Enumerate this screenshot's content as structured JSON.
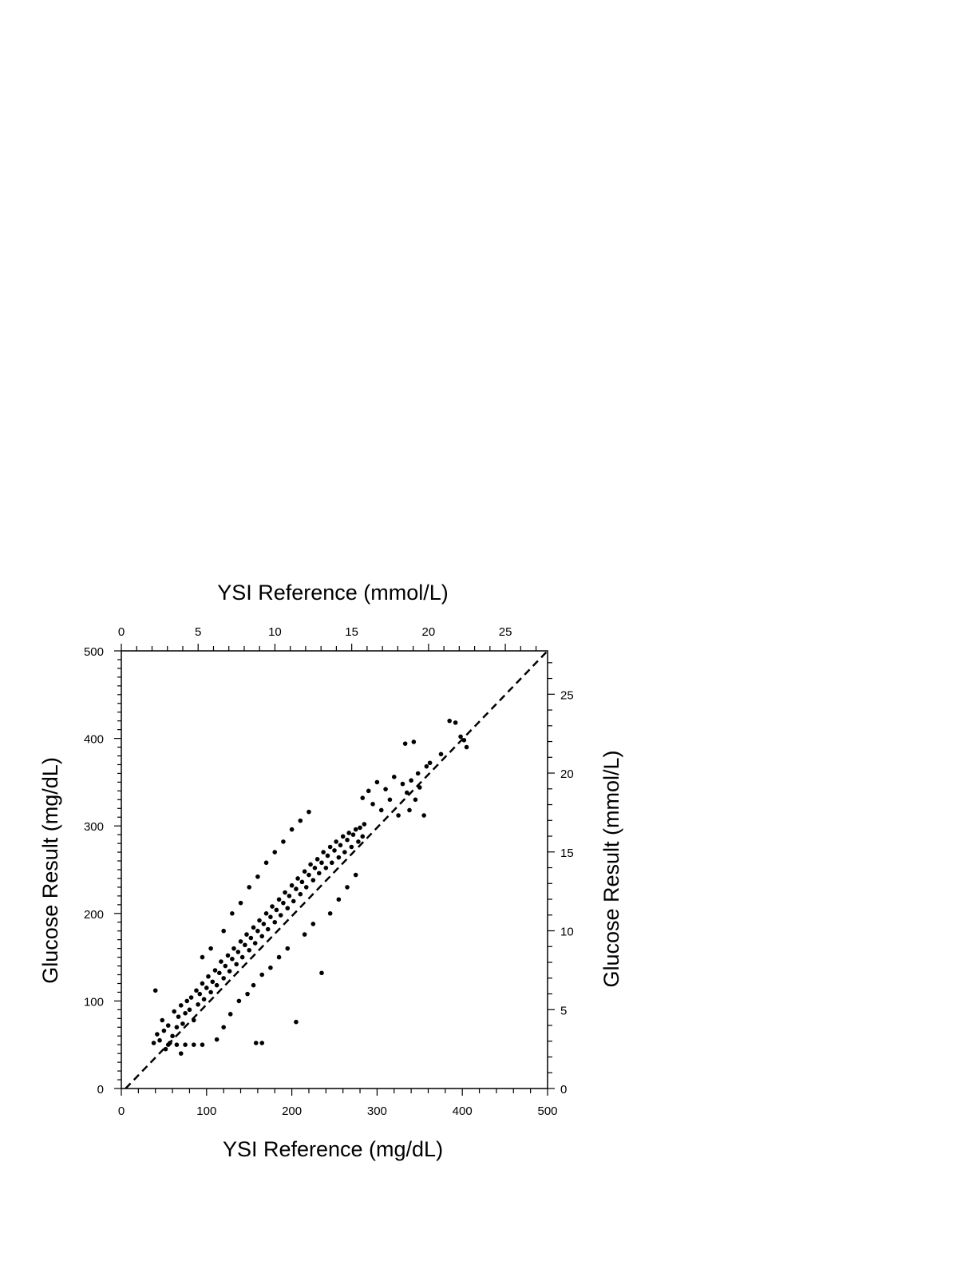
{
  "chart_data": {
    "type": "scatter",
    "title": "",
    "xlabel": "YSI Reference (mg/dL)",
    "ylabel": "Glucose Result (mg/dL)",
    "x2label": "YSI Reference (mmol/L)",
    "y2label": "Glucose Result (mmol/L)",
    "xlim": [
      0,
      500
    ],
    "ylim": [
      0,
      500
    ],
    "x2lim": [
      0,
      27.75
    ],
    "y2lim": [
      0,
      27.75
    ],
    "x_ticks": [
      0,
      100,
      200,
      300,
      400,
      500
    ],
    "y_ticks": [
      0,
      100,
      200,
      300,
      400,
      500
    ],
    "x2_ticks": [
      0,
      5,
      10,
      15,
      20,
      25
    ],
    "y2_ticks": [
      0,
      5,
      10,
      15,
      20,
      25
    ],
    "x_tick_labels": [
      "0",
      "100",
      "200",
      "300",
      "400",
      "500"
    ],
    "y_tick_labels": [
      "0",
      "100",
      "200",
      "300",
      "400",
      "500"
    ],
    "x2_tick_labels": [
      "0",
      "5",
      "10",
      "15",
      "20",
      "25"
    ],
    "y2_tick_labels": [
      "0",
      "5",
      "10",
      "15",
      "20",
      "25"
    ],
    "grid": false,
    "reference_line": {
      "style": "dashed",
      "x": [
        5,
        500
      ],
      "y": [
        0,
        500
      ]
    },
    "marker_color": "#000000",
    "series": [
      {
        "points": [
          [
            38,
            52
          ],
          [
            40,
            112
          ],
          [
            42,
            62
          ],
          [
            45,
            55
          ],
          [
            48,
            78
          ],
          [
            50,
            66
          ],
          [
            52,
            45
          ],
          [
            55,
            72
          ],
          [
            57,
            52
          ],
          [
            60,
            60
          ],
          [
            62,
            88
          ],
          [
            65,
            70
          ],
          [
            67,
            82
          ],
          [
            70,
            95
          ],
          [
            72,
            74
          ],
          [
            75,
            86
          ],
          [
            77,
            100
          ],
          [
            80,
            90
          ],
          [
            82,
            104
          ],
          [
            85,
            78
          ],
          [
            88,
            112
          ],
          [
            90,
            96
          ],
          [
            92,
            108
          ],
          [
            95,
            120
          ],
          [
            97,
            102
          ],
          [
            100,
            115
          ],
          [
            102,
            128
          ],
          [
            105,
            110
          ],
          [
            107,
            122
          ],
          [
            110,
            135
          ],
          [
            112,
            118
          ],
          [
            115,
            132
          ],
          [
            117,
            145
          ],
          [
            120,
            126
          ],
          [
            122,
            140
          ],
          [
            125,
            152
          ],
          [
            127,
            134
          ],
          [
            130,
            148
          ],
          [
            132,
            160
          ],
          [
            135,
            142
          ],
          [
            137,
            156
          ],
          [
            140,
            168
          ],
          [
            142,
            150
          ],
          [
            145,
            164
          ],
          [
            147,
            176
          ],
          [
            150,
            158
          ],
          [
            152,
            172
          ],
          [
            155,
            184
          ],
          [
            157,
            166
          ],
          [
            160,
            180
          ],
          [
            162,
            192
          ],
          [
            165,
            174
          ],
          [
            167,
            188
          ],
          [
            170,
            200
          ],
          [
            172,
            182
          ],
          [
            175,
            196
          ],
          [
            177,
            208
          ],
          [
            180,
            190
          ],
          [
            182,
            204
          ],
          [
            185,
            216
          ],
          [
            187,
            198
          ],
          [
            190,
            212
          ],
          [
            192,
            224
          ],
          [
            195,
            206
          ],
          [
            197,
            220
          ],
          [
            200,
            232
          ],
          [
            202,
            214
          ],
          [
            205,
            228
          ],
          [
            207,
            240
          ],
          [
            210,
            222
          ],
          [
            212,
            236
          ],
          [
            215,
            248
          ],
          [
            217,
            230
          ],
          [
            220,
            244
          ],
          [
            222,
            256
          ],
          [
            225,
            238
          ],
          [
            227,
            252
          ],
          [
            230,
            262
          ],
          [
            232,
            246
          ],
          [
            235,
            258
          ],
          [
            237,
            270
          ],
          [
            240,
            252
          ],
          [
            242,
            266
          ],
          [
            245,
            276
          ],
          [
            247,
            258
          ],
          [
            250,
            272
          ],
          [
            252,
            282
          ],
          [
            255,
            264
          ],
          [
            257,
            278
          ],
          [
            260,
            288
          ],
          [
            262,
            270
          ],
          [
            265,
            284
          ],
          [
            267,
            292
          ],
          [
            270,
            276
          ],
          [
            272,
            290
          ],
          [
            275,
            296
          ],
          [
            278,
            282
          ],
          [
            280,
            298
          ],
          [
            283,
            288
          ],
          [
            285,
            302
          ],
          [
            55,
            50
          ],
          [
            65,
            50
          ],
          [
            75,
            50
          ],
          [
            85,
            50
          ],
          [
            95,
            50
          ],
          [
            158,
            52
          ],
          [
            165,
            52
          ],
          [
            70,
            40
          ],
          [
            112,
            56
          ],
          [
            120,
            70
          ],
          [
            128,
            85
          ],
          [
            138,
            100
          ],
          [
            148,
            108
          ],
          [
            155,
            118
          ],
          [
            165,
            130
          ],
          [
            175,
            138
          ],
          [
            185,
            150
          ],
          [
            195,
            160
          ],
          [
            205,
            76
          ],
          [
            215,
            176
          ],
          [
            225,
            188
          ],
          [
            235,
            132
          ],
          [
            245,
            200
          ],
          [
            255,
            216
          ],
          [
            265,
            230
          ],
          [
            275,
            244
          ],
          [
            95,
            150
          ],
          [
            105,
            160
          ],
          [
            120,
            180
          ],
          [
            130,
            200
          ],
          [
            140,
            212
          ],
          [
            150,
            230
          ],
          [
            160,
            242
          ],
          [
            170,
            258
          ],
          [
            180,
            270
          ],
          [
            190,
            282
          ],
          [
            200,
            296
          ],
          [
            210,
            306
          ],
          [
            220,
            316
          ],
          [
            283,
            332
          ],
          [
            290,
            340
          ],
          [
            295,
            325
          ],
          [
            300,
            350
          ],
          [
            305,
            318
          ],
          [
            310,
            342
          ],
          [
            315,
            330
          ],
          [
            320,
            356
          ],
          [
            325,
            312
          ],
          [
            330,
            348
          ],
          [
            333,
            394
          ],
          [
            335,
            338
          ],
          [
            338,
            318
          ],
          [
            340,
            352
          ],
          [
            343,
            396
          ],
          [
            345,
            330
          ],
          [
            348,
            360
          ],
          [
            350,
            344
          ],
          [
            355,
            312
          ],
          [
            358,
            368
          ],
          [
            362,
            372
          ],
          [
            375,
            382
          ],
          [
            385,
            420
          ],
          [
            392,
            418
          ],
          [
            398,
            402
          ],
          [
            402,
            398
          ],
          [
            405,
            390
          ]
        ]
      }
    ]
  }
}
